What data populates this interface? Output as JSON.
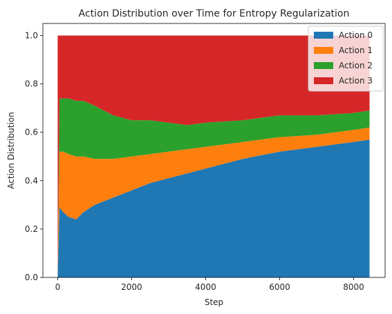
{
  "chart_data": {
    "type": "area",
    "stacked": true,
    "title": "Action Distribution over Time for Entropy Regularization",
    "xlabel": "Step",
    "ylabel": "Action Distribution",
    "xlim": [
      -400,
      8850
    ],
    "ylim": [
      0,
      1.05
    ],
    "xticks": [
      0,
      2000,
      4000,
      6000,
      8000
    ],
    "xtick_labels": [
      "0",
      "2000",
      "4000",
      "6000",
      "8000"
    ],
    "yticks": [
      0,
      0.2,
      0.4,
      0.6,
      0.8,
      1.0
    ],
    "ytick_labels": [
      "0.0",
      "0.2",
      "0.4",
      "0.6",
      "0.8",
      "1.0"
    ],
    "grid": false,
    "legend_position": "top-right",
    "x": [
      0,
      50,
      150,
      300,
      500,
      700,
      1000,
      1500,
      2000,
      2500,
      3000,
      3500,
      4000,
      5000,
      6000,
      7000,
      8000,
      8430
    ],
    "series": [
      {
        "name": "Action 0",
        "color": "#1f77b4",
        "values": [
          0.0,
          0.29,
          0.27,
          0.25,
          0.24,
          0.27,
          0.3,
          0.33,
          0.36,
          0.39,
          0.41,
          0.43,
          0.45,
          0.49,
          0.52,
          0.54,
          0.56,
          0.57
        ]
      },
      {
        "name": "Action 1",
        "color": "#ff7f0e",
        "values": [
          0.0,
          0.23,
          0.25,
          0.26,
          0.26,
          0.23,
          0.19,
          0.16,
          0.14,
          0.12,
          0.11,
          0.1,
          0.09,
          0.07,
          0.06,
          0.05,
          0.05,
          0.05
        ]
      },
      {
        "name": "Action 2",
        "color": "#2ca02c",
        "values": [
          0.0,
          0.22,
          0.22,
          0.23,
          0.23,
          0.23,
          0.22,
          0.18,
          0.15,
          0.14,
          0.12,
          0.1,
          0.1,
          0.09,
          0.09,
          0.08,
          0.07,
          0.07
        ]
      },
      {
        "name": "Action 3",
        "color": "#d62728",
        "values": [
          1.0,
          0.26,
          0.26,
          0.26,
          0.27,
          0.27,
          0.29,
          0.33,
          0.35,
          0.35,
          0.36,
          0.37,
          0.36,
          0.35,
          0.33,
          0.33,
          0.32,
          0.31
        ]
      }
    ]
  }
}
